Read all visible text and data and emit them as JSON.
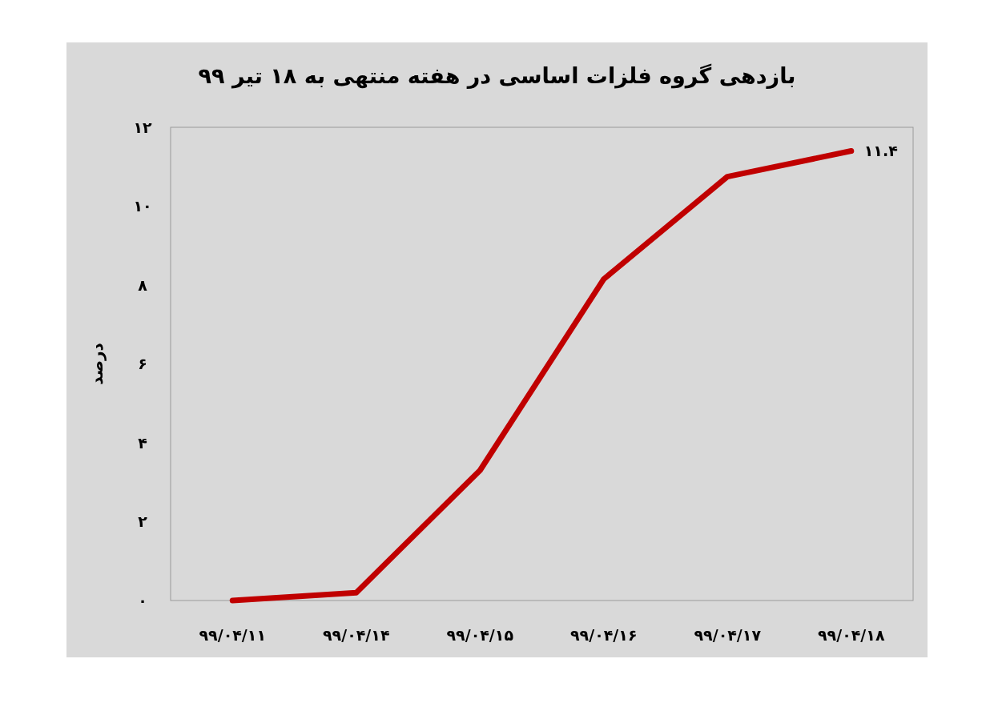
{
  "chart_data": {
    "type": "line",
    "title": "بازدهی گروه فلزات اساسی در هفته منتهی به ۱۸ تیر ۹۹",
    "ylabel": "درصد",
    "categories": [
      "۹۹/۰۴/۱۱",
      "۹۹/۰۴/۱۴",
      "۹۹/۰۴/۱۵",
      "۹۹/۰۴/۱۶",
      "۹۹/۰۴/۱۷",
      "۹۹/۰۴/۱۸"
    ],
    "series": [
      {
        "color": "#c00000",
        "values": [
          0,
          0.2,
          3.3,
          8.15,
          10.75,
          11.4
        ],
        "value_labels": [
          null,
          null,
          null,
          null,
          null,
          "۱۱.۴"
        ]
      }
    ],
    "ylim": [
      0,
      12
    ],
    "yticks": [
      {
        "value": 0,
        "label": "۰"
      },
      {
        "value": 2,
        "label": "۲"
      },
      {
        "value": 4,
        "label": "۴"
      },
      {
        "value": 6,
        "label": "۶"
      },
      {
        "value": 8,
        "label": "۸"
      },
      {
        "value": 10,
        "label": "۱۰"
      },
      {
        "value": 12,
        "label": "۱۲"
      }
    ],
    "grid": false,
    "marker": "none",
    "line_style": "solid"
  }
}
